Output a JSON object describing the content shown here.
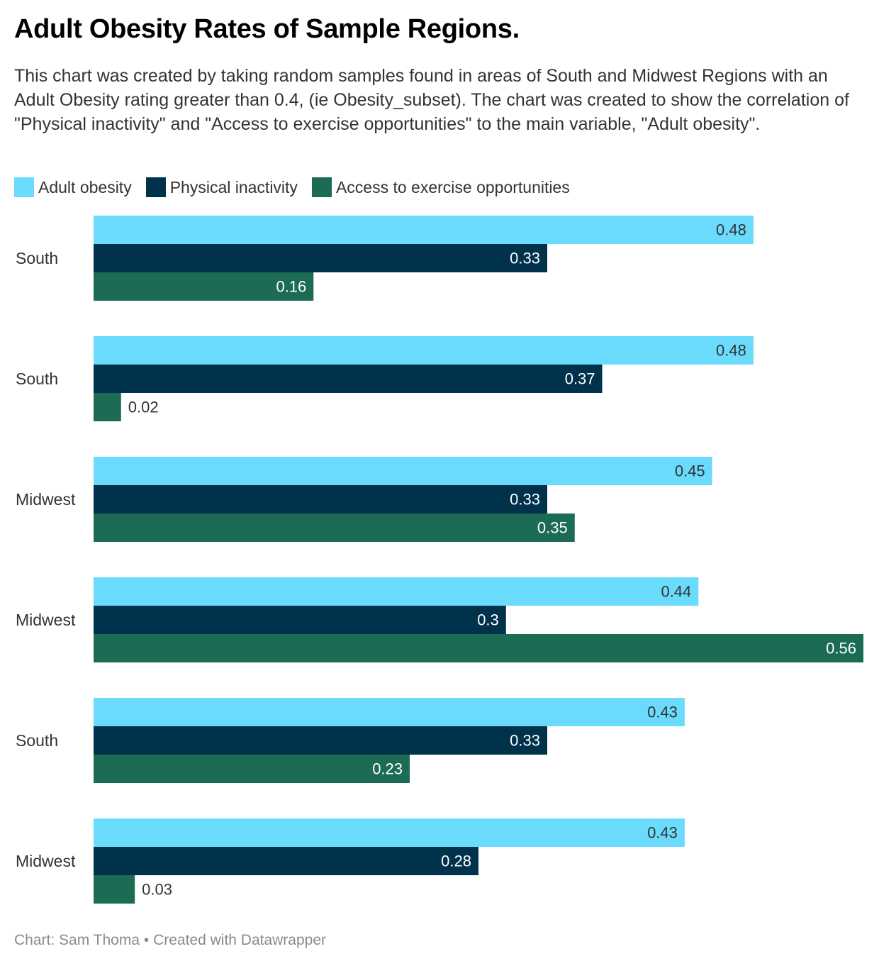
{
  "title": "Adult Obesity Rates of Sample Regions.",
  "description": "This chart was created by taking random samples found in areas of South and Midwest Regions with an Adult Obesity rating greater than 0.4, (ie Obesity_subset). The chart was created to show the correlation of \"Physical inactivity\" and \"Access to exercise opportunities\" to the main variable, \"Adult obesity\".",
  "footer": {
    "source": "Chart: Sam Thoma",
    "separator": "•",
    "credit": "Created with Datawrapper"
  },
  "chart_data": {
    "type": "bar",
    "orientation": "horizontal",
    "title": "Adult Obesity Rates of Sample Regions.",
    "categories": [
      "South",
      "South",
      "Midwest",
      "Midwest",
      "South",
      "Midwest"
    ],
    "series": [
      {
        "name": "Adult obesity",
        "color": "#6adbfc",
        "label_color": "#333333",
        "values": [
          0.48,
          0.48,
          0.45,
          0.44,
          0.43,
          0.43
        ]
      },
      {
        "name": "Physical inactivity",
        "color": "#01324b",
        "label_color": "#ffffff",
        "values": [
          0.33,
          0.37,
          0.33,
          0.3,
          0.33,
          0.28
        ]
      },
      {
        "name": "Access to exercise opportunities",
        "color": "#1c6b54",
        "label_color": "#ffffff",
        "values": [
          0.16,
          0.02,
          0.35,
          0.56,
          0.23,
          0.03
        ]
      }
    ],
    "xlim": [
      0,
      0.56
    ],
    "xlabel": "",
    "ylabel": "",
    "grid": false,
    "legend": "top-left",
    "data_labels": true
  }
}
